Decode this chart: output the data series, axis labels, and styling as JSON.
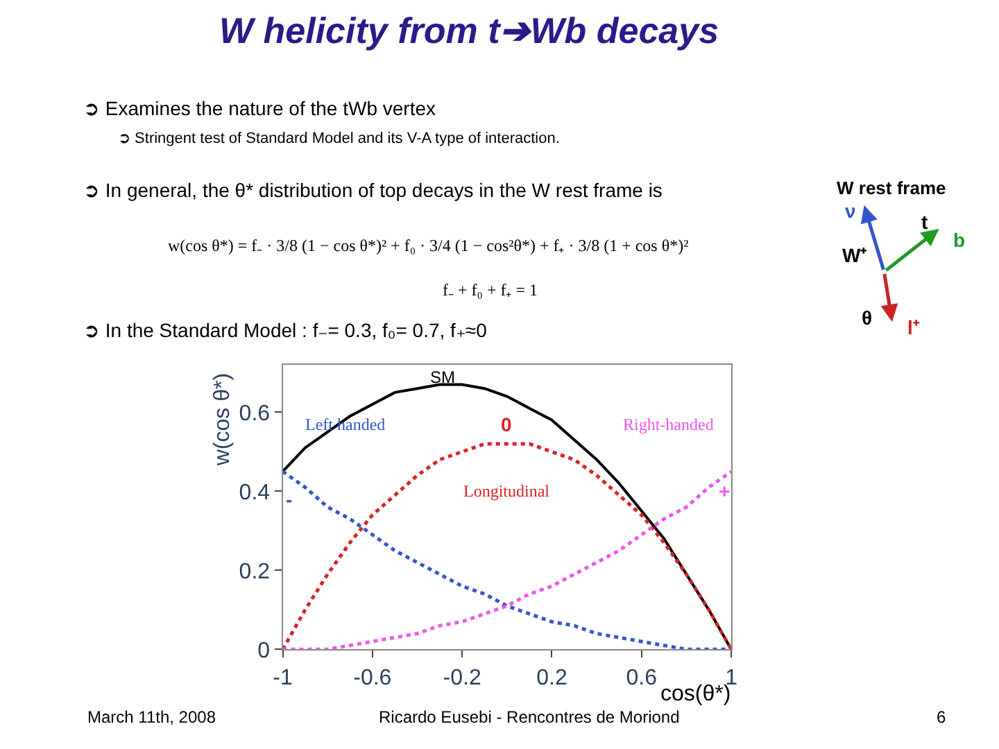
{
  "chart_data": {
    "type": "line",
    "title": "W helicity from t➔Wb decays",
    "subtitle": "➲ Examines the nature of the tWb vertex",
    "x": [
      -1,
      -0.9,
      -0.8,
      -0.7,
      -0.6,
      -0.5,
      -0.4,
      -0.3,
      -0.2,
      -0.1,
      0,
      0.1,
      0.2,
      0.3,
      0.4,
      0.5,
      0.6,
      0.7,
      0.8,
      0.9,
      1
    ],
    "series": [
      {
        "name": "SM",
        "color": "#000000",
        "line_style": "solid",
        "values": [
          0.45,
          0.51,
          0.55,
          0.59,
          0.62,
          0.65,
          0.66,
          0.67,
          0.67,
          0.66,
          0.64,
          0.61,
          0.58,
          0.53,
          0.48,
          0.42,
          0.35,
          0.28,
          0.19,
          0.1,
          0
        ]
      },
      {
        "name": "Left handed",
        "color": "#3355cc",
        "line_style": "dotted",
        "values": [
          0.45,
          0.41,
          0.36,
          0.33,
          0.29,
          0.25,
          0.22,
          0.19,
          0.16,
          0.14,
          0.11,
          0.09,
          0.07,
          0.06,
          0.04,
          0.03,
          0.02,
          0.01,
          0,
          0,
          0
        ]
      },
      {
        "name": "Longitudinal",
        "color": "#dd2222",
        "line_style": "dotted",
        "values": [
          0,
          0.1,
          0.19,
          0.27,
          0.34,
          0.39,
          0.44,
          0.48,
          0.5,
          0.52,
          0.52,
          0.52,
          0.5,
          0.48,
          0.44,
          0.39,
          0.34,
          0.27,
          0.19,
          0.1,
          0
        ]
      },
      {
        "name": "Right-handed",
        "color": "#ee55ee",
        "line_style": "dotted",
        "values": [
          0,
          0,
          0,
          0.01,
          0.02,
          0.03,
          0.04,
          0.06,
          0.07,
          0.09,
          0.11,
          0.14,
          0.16,
          0.19,
          0.22,
          0.25,
          0.29,
          0.33,
          0.36,
          0.41,
          0.45
        ]
      }
    ],
    "xlabel": "cos(θ*)",
    "ylabel": "w(cos θ*)",
    "xlim": [
      -1,
      1
    ],
    "xticks": [
      -1,
      -0.6,
      -0.2,
      0.2,
      0.6,
      1
    ],
    "ylim": [
      0,
      0.72
    ],
    "yticks": [
      0,
      0.2,
      0.4,
      0.6
    ],
    "marker": "none",
    "legend": false,
    "annotations": [
      "➲ Stringent test of Standard Model and its V-A type of interaction.",
      "➲ In general, the θ* distribution of top decays in the W rest frame is",
      "w(cos θ*) = f₋ · 3/8 (1 − cos θ*)² + f₀ · 3/4 (1 − cos²θ*) + f₊ · 3/8 (1 + cos θ*)²",
      "f₋ + f₀ + f₊ = 1",
      "➲ In the Standard Model : f₋= 0.3, f₀= 0.7, f₊≈0",
      "W rest frame",
      "ν",
      "t",
      "b",
      "W⁺",
      "θ",
      "l⁺",
      "0",
      "-",
      "+",
      "March 11th, 2008",
      "Ricardo Eusebi - Rencontres de Moriond",
      "6"
    ]
  }
}
